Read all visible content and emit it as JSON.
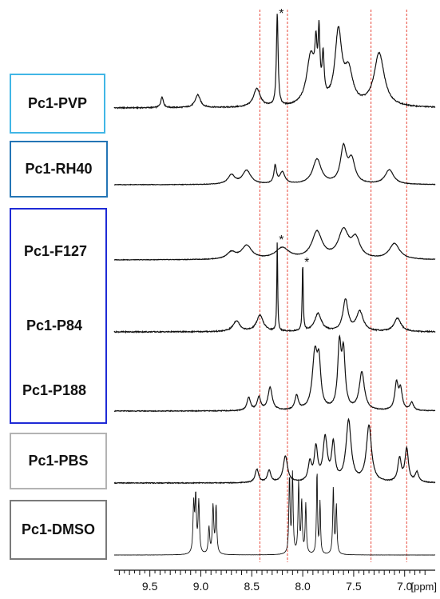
{
  "chart_data": {
    "type": "line",
    "title": "",
    "xlabel": "[ppm]",
    "x_unit": "ppm",
    "xlim": [
      9.85,
      6.7
    ],
    "x_reversed": true,
    "x_ticks": [
      "9.5",
      "9.0",
      "8.5",
      "8.0",
      "7.5",
      "7.0"
    ],
    "x_tick_values": [
      9.5,
      9.0,
      8.5,
      8.0,
      7.5,
      7.0
    ],
    "reference_lines_ppm": [
      8.42,
      8.15,
      7.33,
      6.98
    ],
    "reference_line_color": "#e8473a",
    "marker_symbol": "*",
    "groups": [
      {
        "series": [
          "Pc1-PVP"
        ],
        "box_color": "#41b6e6"
      },
      {
        "series": [
          "Pc1-RH40"
        ],
        "box_color": "#2475b5"
      },
      {
        "series": [
          "Pc1-F127",
          "Pc1-P84",
          "Pc1-P188"
        ],
        "box_color": "#1f2bd6"
      },
      {
        "series": [
          "Pc1-PBS"
        ],
        "box_color": "#b3b3b3"
      },
      {
        "series": [
          "Pc1-DMSO"
        ],
        "box_color": "#7a7a7a"
      }
    ],
    "series": [
      {
        "name": "Pc1-PVP",
        "peaks": [
          {
            "ppm": 9.38,
            "height": 0.12,
            "width": 0.015
          },
          {
            "ppm": 9.03,
            "height": 0.14,
            "width": 0.03
          },
          {
            "ppm": 8.45,
            "height": 0.2,
            "width": 0.04
          },
          {
            "ppm": 8.25,
            "height": 1.0,
            "width": 0.01,
            "marker": "*"
          },
          {
            "ppm": 7.92,
            "height": 0.55,
            "width": 0.05
          },
          {
            "ppm": 7.87,
            "height": 0.45,
            "width": 0.012
          },
          {
            "ppm": 7.84,
            "height": 0.65,
            "width": 0.01
          },
          {
            "ppm": 7.8,
            "height": 0.45,
            "width": 0.012
          },
          {
            "ppm": 7.65,
            "height": 0.78,
            "width": 0.04
          },
          {
            "ppm": 7.55,
            "height": 0.35,
            "width": 0.05
          },
          {
            "ppm": 7.25,
            "height": 0.58,
            "width": 0.06
          }
        ]
      },
      {
        "name": "Pc1-RH40",
        "peaks": [
          {
            "ppm": 8.7,
            "height": 0.22,
            "width": 0.04
          },
          {
            "ppm": 8.55,
            "height": 0.33,
            "width": 0.05
          },
          {
            "ppm": 8.27,
            "height": 0.42,
            "width": 0.015
          },
          {
            "ppm": 8.2,
            "height": 0.28,
            "width": 0.03
          },
          {
            "ppm": 7.86,
            "height": 0.6,
            "width": 0.05
          },
          {
            "ppm": 7.6,
            "height": 0.85,
            "width": 0.035
          },
          {
            "ppm": 7.52,
            "height": 0.55,
            "width": 0.04
          },
          {
            "ppm": 7.15,
            "height": 0.35,
            "width": 0.05
          }
        ]
      },
      {
        "name": "Pc1-F127",
        "peaks": [
          {
            "ppm": 8.7,
            "height": 0.15,
            "width": 0.05
          },
          {
            "ppm": 8.55,
            "height": 0.3,
            "width": 0.06
          },
          {
            "ppm": 8.2,
            "height": 0.25,
            "width": 0.08
          },
          {
            "ppm": 7.86,
            "height": 0.6,
            "width": 0.06
          },
          {
            "ppm": 7.6,
            "height": 0.62,
            "width": 0.06
          },
          {
            "ppm": 7.48,
            "height": 0.42,
            "width": 0.05
          },
          {
            "ppm": 7.1,
            "height": 0.35,
            "width": 0.06
          }
        ]
      },
      {
        "name": "Pc1-P84",
        "peaks": [
          {
            "ppm": 8.65,
            "height": 0.12,
            "width": 0.04
          },
          {
            "ppm": 8.42,
            "height": 0.18,
            "width": 0.04
          },
          {
            "ppm": 8.25,
            "height": 1.0,
            "width": 0.005,
            "marker": "*"
          },
          {
            "ppm": 8.0,
            "height": 0.75,
            "width": 0.006,
            "marker": "*"
          },
          {
            "ppm": 7.85,
            "height": 0.2,
            "width": 0.04
          },
          {
            "ppm": 7.58,
            "height": 0.35,
            "width": 0.03
          },
          {
            "ppm": 7.44,
            "height": 0.22,
            "width": 0.04
          },
          {
            "ppm": 7.07,
            "height": 0.15,
            "width": 0.04
          }
        ]
      },
      {
        "name": "Pc1-P188",
        "peaks": [
          {
            "ppm": 8.53,
            "height": 0.2,
            "width": 0.02
          },
          {
            "ppm": 8.43,
            "height": 0.2,
            "width": 0.02
          },
          {
            "ppm": 8.32,
            "height": 0.35,
            "width": 0.025
          },
          {
            "ppm": 8.06,
            "height": 0.22,
            "width": 0.02
          },
          {
            "ppm": 7.88,
            "height": 0.85,
            "width": 0.03
          },
          {
            "ppm": 7.84,
            "height": 0.6,
            "width": 0.02
          },
          {
            "ppm": 7.64,
            "height": 0.95,
            "width": 0.02
          },
          {
            "ppm": 7.6,
            "height": 0.82,
            "width": 0.02
          },
          {
            "ppm": 7.42,
            "height": 0.58,
            "width": 0.03
          },
          {
            "ppm": 7.08,
            "height": 0.4,
            "width": 0.02
          },
          {
            "ppm": 7.04,
            "height": 0.3,
            "width": 0.02
          },
          {
            "ppm": 6.93,
            "height": 0.12,
            "width": 0.02
          }
        ]
      },
      {
        "name": "Pc1-PBS",
        "peaks": [
          {
            "ppm": 8.45,
            "height": 0.2,
            "width": 0.02
          },
          {
            "ppm": 8.33,
            "height": 0.18,
            "width": 0.02
          },
          {
            "ppm": 8.17,
            "height": 0.4,
            "width": 0.025
          },
          {
            "ppm": 7.93,
            "height": 0.28,
            "width": 0.02
          },
          {
            "ppm": 7.87,
            "height": 0.5,
            "width": 0.02
          },
          {
            "ppm": 7.78,
            "height": 0.65,
            "width": 0.025
          },
          {
            "ppm": 7.7,
            "height": 0.55,
            "width": 0.02
          },
          {
            "ppm": 7.55,
            "height": 0.92,
            "width": 0.03
          },
          {
            "ppm": 7.35,
            "height": 0.85,
            "width": 0.03
          },
          {
            "ppm": 7.05,
            "height": 0.35,
            "width": 0.02
          },
          {
            "ppm": 6.98,
            "height": 0.5,
            "width": 0.02
          },
          {
            "ppm": 6.88,
            "height": 0.15,
            "width": 0.02
          }
        ]
      },
      {
        "name": "Pc1-DMSO",
        "peaks": [
          {
            "ppm": 9.07,
            "height": 0.58,
            "width": 0.008
          },
          {
            "ppm": 9.05,
            "height": 0.66,
            "width": 0.008
          },
          {
            "ppm": 9.02,
            "height": 0.62,
            "width": 0.008
          },
          {
            "ppm": 8.92,
            "height": 0.32,
            "width": 0.008
          },
          {
            "ppm": 8.88,
            "height": 0.57,
            "width": 0.008
          },
          {
            "ppm": 8.85,
            "height": 0.57,
            "width": 0.008
          },
          {
            "ppm": 8.13,
            "height": 0.92,
            "width": 0.007
          },
          {
            "ppm": 8.1,
            "height": 0.95,
            "width": 0.007
          },
          {
            "ppm": 8.04,
            "height": 0.85,
            "width": 0.007
          },
          {
            "ppm": 8.01,
            "height": 0.62,
            "width": 0.007
          },
          {
            "ppm": 7.97,
            "height": 0.6,
            "width": 0.007
          },
          {
            "ppm": 7.86,
            "height": 1.0,
            "width": 0.006
          },
          {
            "ppm": 7.83,
            "height": 0.62,
            "width": 0.006
          },
          {
            "ppm": 7.7,
            "height": 0.8,
            "width": 0.007
          },
          {
            "ppm": 7.67,
            "height": 0.58,
            "width": 0.007
          }
        ]
      }
    ]
  }
}
